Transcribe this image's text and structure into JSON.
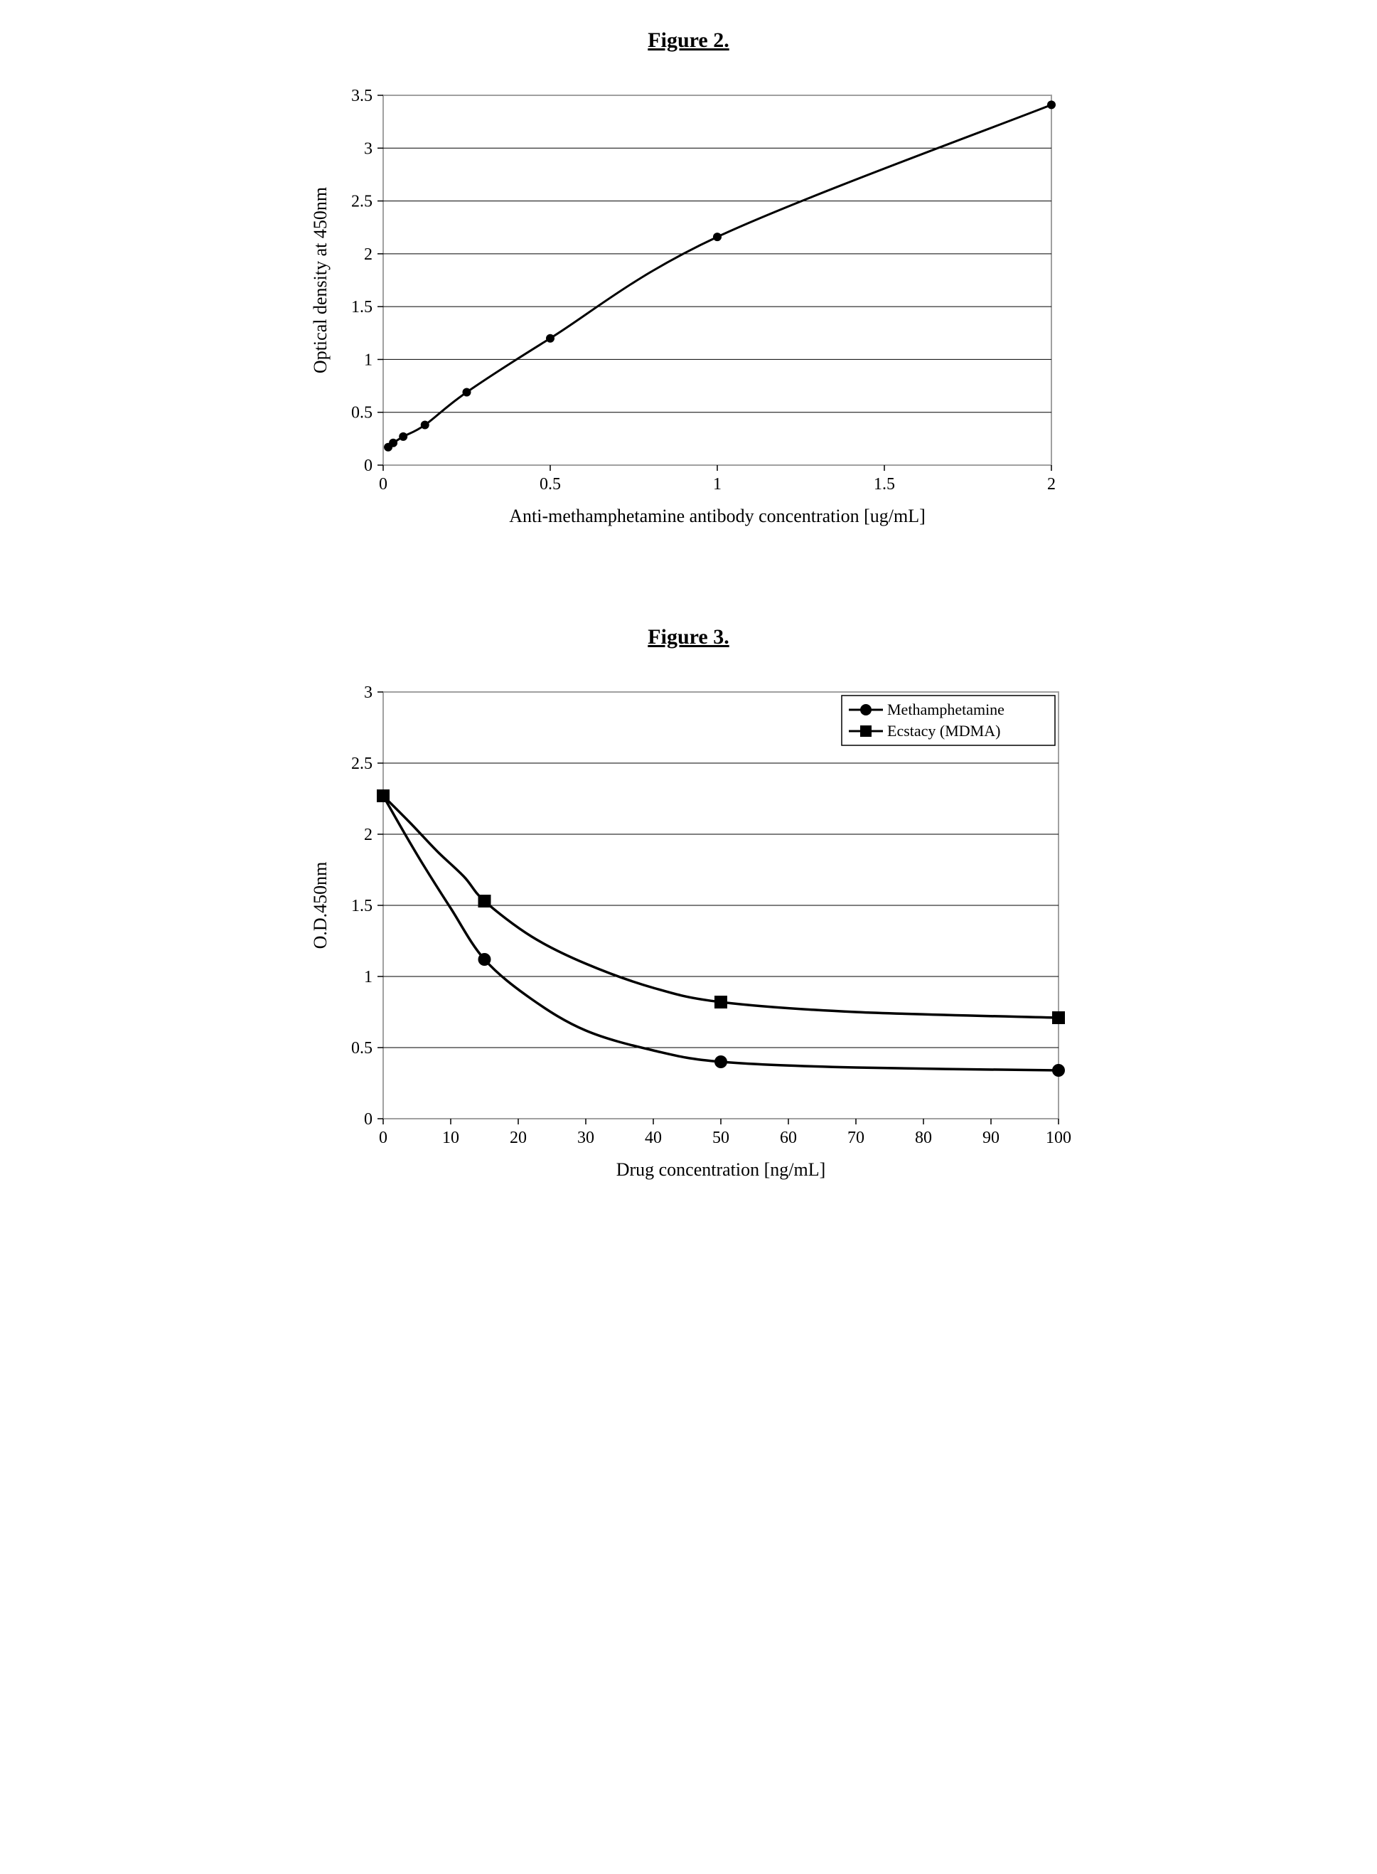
{
  "figure2": {
    "title": "Figure 2.",
    "type": "line",
    "xlabel": "Anti-methamphetamine antibody concentration [ug/mL]",
    "ylabel": "Optical density at 450nm",
    "xlim": [
      0,
      2
    ],
    "ylim": [
      0,
      3.5
    ],
    "xticks": [
      0,
      0.5,
      1,
      1.5,
      2
    ],
    "yticks": [
      0,
      0.5,
      1,
      1.5,
      2,
      2.5,
      3,
      3.5
    ],
    "background_color": "#ffffff",
    "plot_border_color": "#a0a0a0",
    "grid_color": "#000000",
    "line_color": "#000000",
    "marker_color": "#000000",
    "line_width": 3,
    "marker_radius": 6,
    "label_fontsize": 26,
    "tick_fontsize": 24,
    "series": {
      "x": [
        0.015,
        0.03,
        0.06,
        0.125,
        0.25,
        0.5,
        1.0,
        2.0
      ],
      "y": [
        0.17,
        0.21,
        0.27,
        0.38,
        0.69,
        1.2,
        2.16,
        3.41
      ]
    }
  },
  "figure3": {
    "title": "Figure 3.",
    "type": "line",
    "xlabel": "Drug concentration [ng/mL]",
    "ylabel": "O.D.450nm",
    "xlim": [
      0,
      100
    ],
    "ylim": [
      0,
      3
    ],
    "xticks": [
      0,
      10,
      20,
      30,
      40,
      50,
      60,
      70,
      80,
      90,
      100
    ],
    "yticks": [
      0,
      0.5,
      1,
      1.5,
      2,
      2.5,
      3
    ],
    "background_color": "#ffffff",
    "plot_border_color": "#a0a0a0",
    "grid_color": "#000000",
    "line_color": "#000000",
    "line_width": 3.5,
    "marker_radius": 9,
    "label_fontsize": 26,
    "tick_fontsize": 24,
    "legend_box_stroke": "#000000",
    "legend_fontsize": 22,
    "series": [
      {
        "name": "Methamphetamine",
        "marker": "circle",
        "x": [
          0,
          15,
          50,
          100
        ],
        "y": [
          2.27,
          1.12,
          0.4,
          0.34
        ],
        "curve": [
          [
            0,
            2.27
          ],
          [
            3,
            2.02
          ],
          [
            6,
            1.78
          ],
          [
            10,
            1.48
          ],
          [
            15,
            1.12
          ],
          [
            22,
            0.84
          ],
          [
            30,
            0.62
          ],
          [
            40,
            0.48
          ],
          [
            50,
            0.4
          ],
          [
            70,
            0.36
          ],
          [
            100,
            0.34
          ]
        ]
      },
      {
        "name": "Ecstacy (MDMA)",
        "marker": "square",
        "x": [
          0,
          15,
          50,
          100
        ],
        "y": [
          2.27,
          1.53,
          0.82,
          0.71
        ],
        "curve": [
          [
            0,
            2.27
          ],
          [
            4,
            2.08
          ],
          [
            8,
            1.88
          ],
          [
            12,
            1.7
          ],
          [
            15,
            1.53
          ],
          [
            22,
            1.28
          ],
          [
            30,
            1.09
          ],
          [
            40,
            0.92
          ],
          [
            50,
            0.82
          ],
          [
            70,
            0.75
          ],
          [
            100,
            0.71
          ]
        ]
      }
    ]
  }
}
